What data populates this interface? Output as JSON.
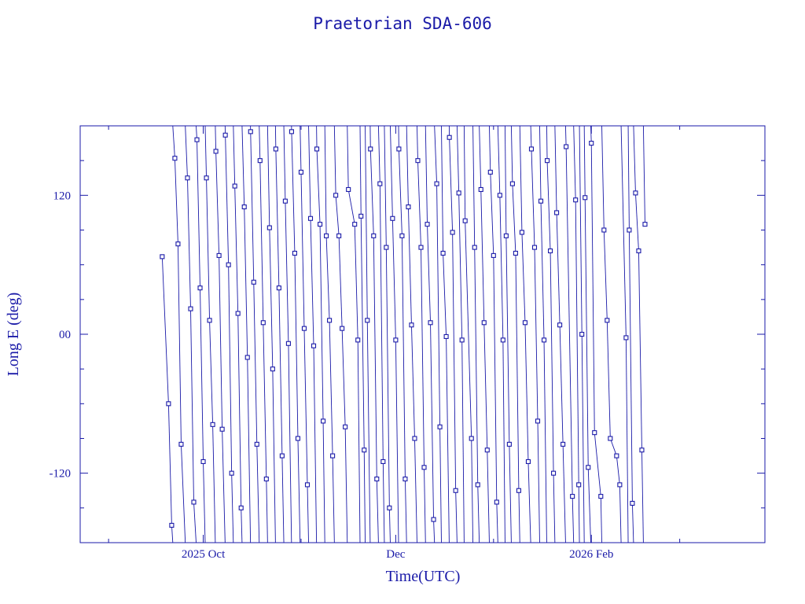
{
  "chart_data": {
    "type": "scatter",
    "title": "Praetorian SDA-606",
    "xlabel": "Time(UTC)",
    "ylabel": "Long E (deg)",
    "x_type": "date",
    "xlim": [
      "2025-08-23",
      "2026-03-28"
    ],
    "ylim": [
      -180,
      180
    ],
    "x_ticks": [
      {
        "value": "2025-10-01",
        "label": "2025 Oct"
      },
      {
        "value": "2025-12-01",
        "label": "Dec"
      },
      {
        "value": "2026-02-01",
        "label": "2026 Feb"
      }
    ],
    "y_ticks": [
      {
        "value": 120,
        "label": "120"
      },
      {
        "value": 0,
        "label": "00"
      },
      {
        "value": -120,
        "label": "-120"
      }
    ],
    "grid": false,
    "color": "#1a1aa8",
    "marker": "square",
    "series": [
      {
        "wrap": true,
        "points": [
          {
            "x": "2025-09-18",
            "y": 67
          },
          {
            "x": "2025-09-20",
            "y": -60
          },
          {
            "x": "2025-09-21",
            "y": -165
          },
          {
            "x": "2025-09-22",
            "y": 152
          },
          {
            "x": "2025-09-23",
            "y": 78
          },
          {
            "x": "2025-09-24",
            "y": -95
          },
          {
            "x": "2025-09-26",
            "y": 135
          },
          {
            "x": "2025-09-27",
            "y": 22
          },
          {
            "x": "2025-09-28",
            "y": -145
          },
          {
            "x": "2025-09-29",
            "y": 168
          },
          {
            "x": "2025-09-30",
            "y": 40
          },
          {
            "x": "2025-10-01",
            "y": -110
          },
          {
            "x": "2025-10-02",
            "y": 135
          },
          {
            "x": "2025-10-03",
            "y": 12
          },
          {
            "x": "2025-10-04",
            "y": -78
          },
          {
            "x": "2025-10-05",
            "y": 158
          },
          {
            "x": "2025-10-06",
            "y": 68
          },
          {
            "x": "2025-10-07",
            "y": -82
          },
          {
            "x": "2025-10-08",
            "y": 172
          },
          {
            "x": "2025-10-09",
            "y": 60
          },
          {
            "x": "2025-10-10",
            "y": -120
          },
          {
            "x": "2025-10-11",
            "y": 128
          },
          {
            "x": "2025-10-12",
            "y": 18
          },
          {
            "x": "2025-10-13",
            "y": -150
          },
          {
            "x": "2025-10-14",
            "y": 110
          },
          {
            "x": "2025-10-15",
            "y": -20
          },
          {
            "x": "2025-10-16",
            "y": 175
          },
          {
            "x": "2025-10-17",
            "y": 45
          },
          {
            "x": "2025-10-18",
            "y": -95
          },
          {
            "x": "2025-10-19",
            "y": 150
          },
          {
            "x": "2025-10-20",
            "y": 10
          },
          {
            "x": "2025-10-21",
            "y": -125
          },
          {
            "x": "2025-10-22",
            "y": 92
          },
          {
            "x": "2025-10-23",
            "y": -30
          },
          {
            "x": "2025-10-24",
            "y": 160
          },
          {
            "x": "2025-10-25",
            "y": 40
          },
          {
            "x": "2025-10-26",
            "y": -105
          },
          {
            "x": "2025-10-27",
            "y": 115
          },
          {
            "x": "2025-10-28",
            "y": -8
          },
          {
            "x": "2025-10-29",
            "y": 175
          },
          {
            "x": "2025-10-30",
            "y": 70
          },
          {
            "x": "2025-10-31",
            "y": -90
          },
          {
            "x": "2025-11-01",
            "y": 140
          },
          {
            "x": "2025-11-02",
            "y": 5
          },
          {
            "x": "2025-11-03",
            "y": -130
          },
          {
            "x": "2025-11-04",
            "y": 100
          },
          {
            "x": "2025-11-05",
            "y": -10
          },
          {
            "x": "2025-11-06",
            "y": 160
          },
          {
            "x": "2025-11-07",
            "y": 95
          },
          {
            "x": "2025-11-08",
            "y": -75
          },
          {
            "x": "2025-11-09",
            "y": 85
          },
          {
            "x": "2025-11-10",
            "y": 12
          },
          {
            "x": "2025-11-11",
            "y": -105
          },
          {
            "x": "2025-11-12",
            "y": 120
          },
          {
            "x": "2025-11-13",
            "y": 85
          },
          {
            "x": "2025-11-14",
            "y": 5
          },
          {
            "x": "2025-11-15",
            "y": -80
          },
          {
            "x": "2025-11-16",
            "y": 125
          },
          {
            "x": "2025-11-18",
            "y": 95
          },
          {
            "x": "2025-11-19",
            "y": -5
          },
          {
            "x": "2025-11-20",
            "y": 102
          },
          {
            "x": "2025-11-21",
            "y": -100
          },
          {
            "x": "2025-11-22",
            "y": 12
          },
          {
            "x": "2025-11-23",
            "y": 160
          },
          {
            "x": "2025-11-24",
            "y": 85
          },
          {
            "x": "2025-11-25",
            "y": -125
          },
          {
            "x": "2025-11-26",
            "y": 130
          },
          {
            "x": "2025-11-27",
            "y": -110
          },
          {
            "x": "2025-11-28",
            "y": 75
          },
          {
            "x": "2025-11-29",
            "y": -150
          },
          {
            "x": "2025-11-30",
            "y": 100
          },
          {
            "x": "2025-12-01",
            "y": -5
          },
          {
            "x": "2025-12-02",
            "y": 160
          },
          {
            "x": "2025-12-03",
            "y": 85
          },
          {
            "x": "2025-12-04",
            "y": -125
          },
          {
            "x": "2025-12-05",
            "y": 110
          },
          {
            "x": "2025-12-06",
            "y": 8
          },
          {
            "x": "2025-12-07",
            "y": -90
          },
          {
            "x": "2025-12-08",
            "y": 150
          },
          {
            "x": "2025-12-09",
            "y": 75
          },
          {
            "x": "2025-12-10",
            "y": -115
          },
          {
            "x": "2025-12-11",
            "y": 95
          },
          {
            "x": "2025-12-12",
            "y": 10
          },
          {
            "x": "2025-12-13",
            "y": -160
          },
          {
            "x": "2025-12-14",
            "y": 130
          },
          {
            "x": "2025-12-15",
            "y": -80
          },
          {
            "x": "2025-12-16",
            "y": 70
          },
          {
            "x": "2025-12-17",
            "y": -2
          },
          {
            "x": "2025-12-18",
            "y": 170
          },
          {
            "x": "2025-12-19",
            "y": 88
          },
          {
            "x": "2025-12-20",
            "y": -135
          },
          {
            "x": "2025-12-21",
            "y": 122
          },
          {
            "x": "2025-12-22",
            "y": -5
          },
          {
            "x": "2025-12-23",
            "y": 98
          },
          {
            "x": "2025-12-25",
            "y": -90
          },
          {
            "x": "2025-12-26",
            "y": 75
          },
          {
            "x": "2025-12-27",
            "y": -130
          },
          {
            "x": "2025-12-28",
            "y": 125
          },
          {
            "x": "2025-12-29",
            "y": 10
          },
          {
            "x": "2025-12-30",
            "y": -100
          },
          {
            "x": "2025-12-31",
            "y": 140
          },
          {
            "x": "2026-01-01",
            "y": 68
          },
          {
            "x": "2026-01-02",
            "y": -145
          },
          {
            "x": "2026-01-03",
            "y": 120
          },
          {
            "x": "2026-01-04",
            "y": -5
          },
          {
            "x": "2026-01-05",
            "y": 85
          },
          {
            "x": "2026-01-06",
            "y": -95
          },
          {
            "x": "2026-01-07",
            "y": 130
          },
          {
            "x": "2026-01-08",
            "y": 70
          },
          {
            "x": "2026-01-09",
            "y": -135
          },
          {
            "x": "2026-01-10",
            "y": 88
          },
          {
            "x": "2026-01-11",
            "y": 10
          },
          {
            "x": "2026-01-12",
            "y": -110
          },
          {
            "x": "2026-01-13",
            "y": 160
          },
          {
            "x": "2026-01-14",
            "y": 75
          },
          {
            "x": "2026-01-15",
            "y": -75
          },
          {
            "x": "2026-01-16",
            "y": 115
          },
          {
            "x": "2026-01-17",
            "y": -5
          },
          {
            "x": "2026-01-18",
            "y": 150
          },
          {
            "x": "2026-01-19",
            "y": 72
          },
          {
            "x": "2026-01-20",
            "y": -120
          },
          {
            "x": "2026-01-21",
            "y": 105
          },
          {
            "x": "2026-01-22",
            "y": 8
          },
          {
            "x": "2026-01-23",
            "y": -95
          },
          {
            "x": "2026-01-24",
            "y": 162
          },
          {
            "x": "2026-01-26",
            "y": -140
          },
          {
            "x": "2026-01-27",
            "y": 116
          },
          {
            "x": "2026-01-28",
            "y": -130
          },
          {
            "x": "2026-01-29",
            "y": 0
          },
          {
            "x": "2026-01-30",
            "y": 118
          },
          {
            "x": "2026-01-31",
            "y": -115
          },
          {
            "x": "2026-02-01",
            "y": 165
          },
          {
            "x": "2026-02-02",
            "y": -85
          },
          {
            "x": "2026-02-04",
            "y": -140
          },
          {
            "x": "2026-02-05",
            "y": 90
          },
          {
            "x": "2026-02-06",
            "y": 12
          },
          {
            "x": "2026-02-07",
            "y": -90
          },
          {
            "x": "2026-02-09",
            "y": -105
          },
          {
            "x": "2026-02-10",
            "y": -130
          },
          {
            "x": "2026-02-12",
            "y": -3
          },
          {
            "x": "2026-02-13",
            "y": 90
          },
          {
            "x": "2026-02-14",
            "y": -146
          },
          {
            "x": "2026-02-15",
            "y": 122
          },
          {
            "x": "2026-02-16",
            "y": 72
          },
          {
            "x": "2026-02-17",
            "y": -100
          },
          {
            "x": "2026-02-18",
            "y": 95
          }
        ]
      }
    ]
  }
}
